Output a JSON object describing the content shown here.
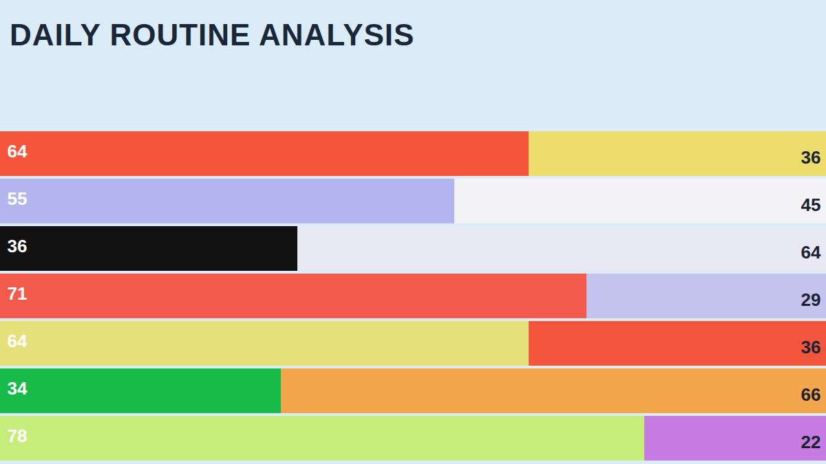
{
  "chart_data": {
    "type": "bar",
    "title": "DAILY ROUTINE ANALYSIS",
    "orientation": "horizontal",
    "stacked": true,
    "data_labels": true,
    "tick_labels": false,
    "categories": [
      null,
      null,
      null,
      null,
      null,
      null,
      null
    ],
    "series": [
      {
        "values": [
          64,
          55,
          36,
          71,
          64,
          34,
          78
        ],
        "colors": [
          "#f4553b",
          "#b3b5ef",
          "#111111",
          "#f25a4c",
          "#e6e07a",
          "#18bb49",
          "#c6ec7c"
        ]
      },
      {
        "values": [
          36,
          45,
          64,
          29,
          36,
          66,
          22
        ],
        "colors": [
          "#ecdc6c",
          "#f3f3f6",
          "#e8e8f4",
          "#c3c3ee",
          "#f1553c",
          "#f4a64c",
          "#c67ce0"
        ]
      }
    ],
    "xlim": [
      0,
      100
    ]
  }
}
